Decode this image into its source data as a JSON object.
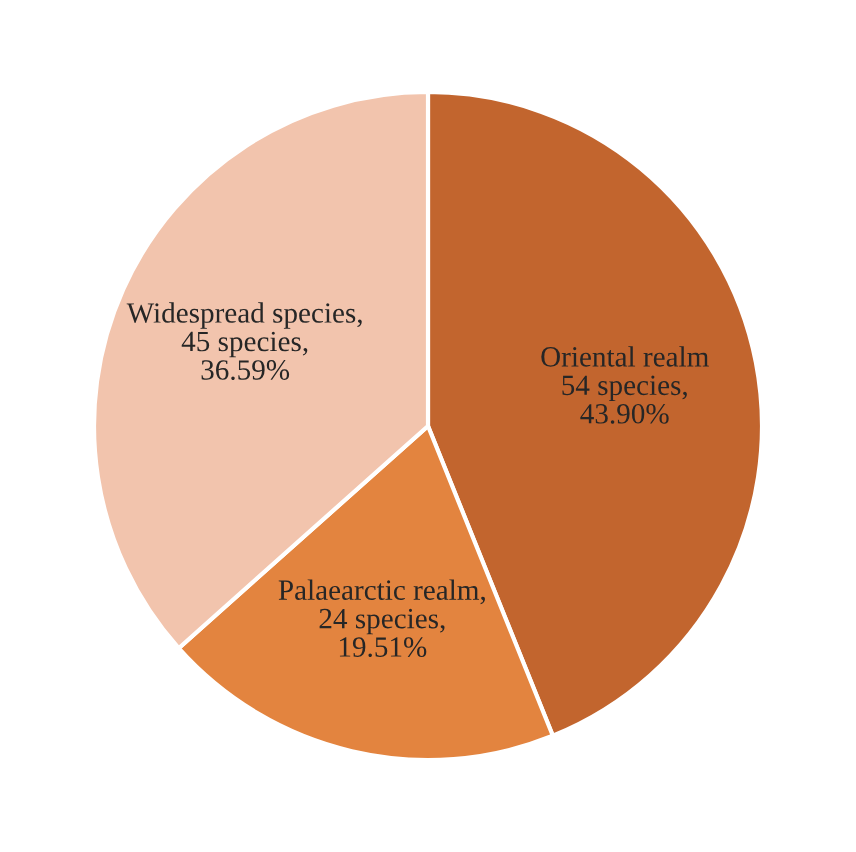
{
  "chart_data": {
    "type": "pie",
    "categories": [
      "Oriental realm",
      "Palaearctic realm",
      "Widespread species"
    ],
    "values": [
      54,
      24,
      45
    ],
    "value_labels": [
      "\n54 species,\n43.90%",
      ",\n24 species,\n19.51%",
      ",\n45 species,\n36.59%"
    ],
    "colors": [
      "#c2652e",
      "#e3843f",
      "#f2c4ad"
    ]
  }
}
